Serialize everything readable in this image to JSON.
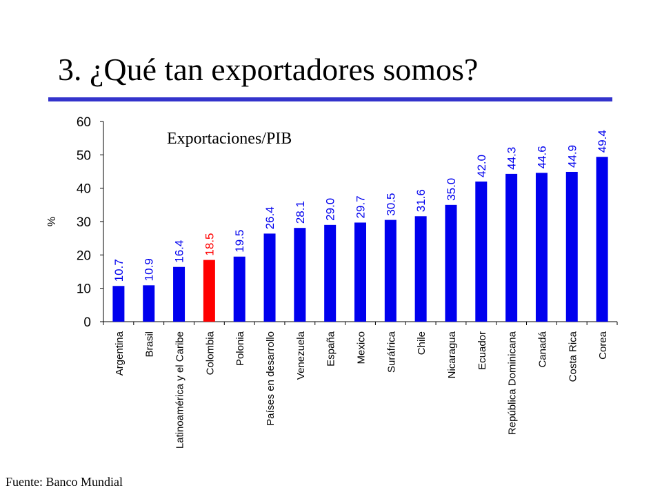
{
  "slide": {
    "title": "3. ¿Qué tan exportadores somos?",
    "source": "Fuente: Banco Mundial",
    "rule_color": "#3333cc"
  },
  "chart_data": {
    "type": "bar",
    "title": "Exportaciones/PIB",
    "xlabel": "",
    "ylabel": "%",
    "ylim": [
      0,
      60
    ],
    "yticks": [
      0,
      10,
      20,
      30,
      40,
      50,
      60
    ],
    "grid": false,
    "categories": [
      "Argentina",
      "Brasil",
      "Latinoamérica y el Caribe",
      "Colombia",
      "Polonia",
      "Países en desarrollo",
      "Venezuela",
      "España",
      "Mexico",
      "Suráfrica",
      "Chile",
      "Nicaragua",
      "Ecuador",
      "República Dominicana",
      "Canadá",
      "Costa Rica",
      "Corea"
    ],
    "values": [
      10.7,
      10.9,
      16.4,
      18.5,
      19.5,
      26.4,
      28.1,
      29.0,
      29.7,
      30.5,
      31.6,
      35.0,
      42.0,
      44.3,
      44.6,
      44.9,
      49.4
    ],
    "value_labels": [
      "10.7",
      "10.9",
      "16.4",
      "18.5",
      "19.5",
      "26.4",
      "28.1",
      "29.0",
      "29.7",
      "30.5",
      "31.6",
      "35.0",
      "42.0",
      "44.3",
      "44.6",
      "44.9",
      "49.4"
    ],
    "bar_color": "#0000ee",
    "highlight_category": "Colombia",
    "highlight_color": "#ff0000"
  }
}
